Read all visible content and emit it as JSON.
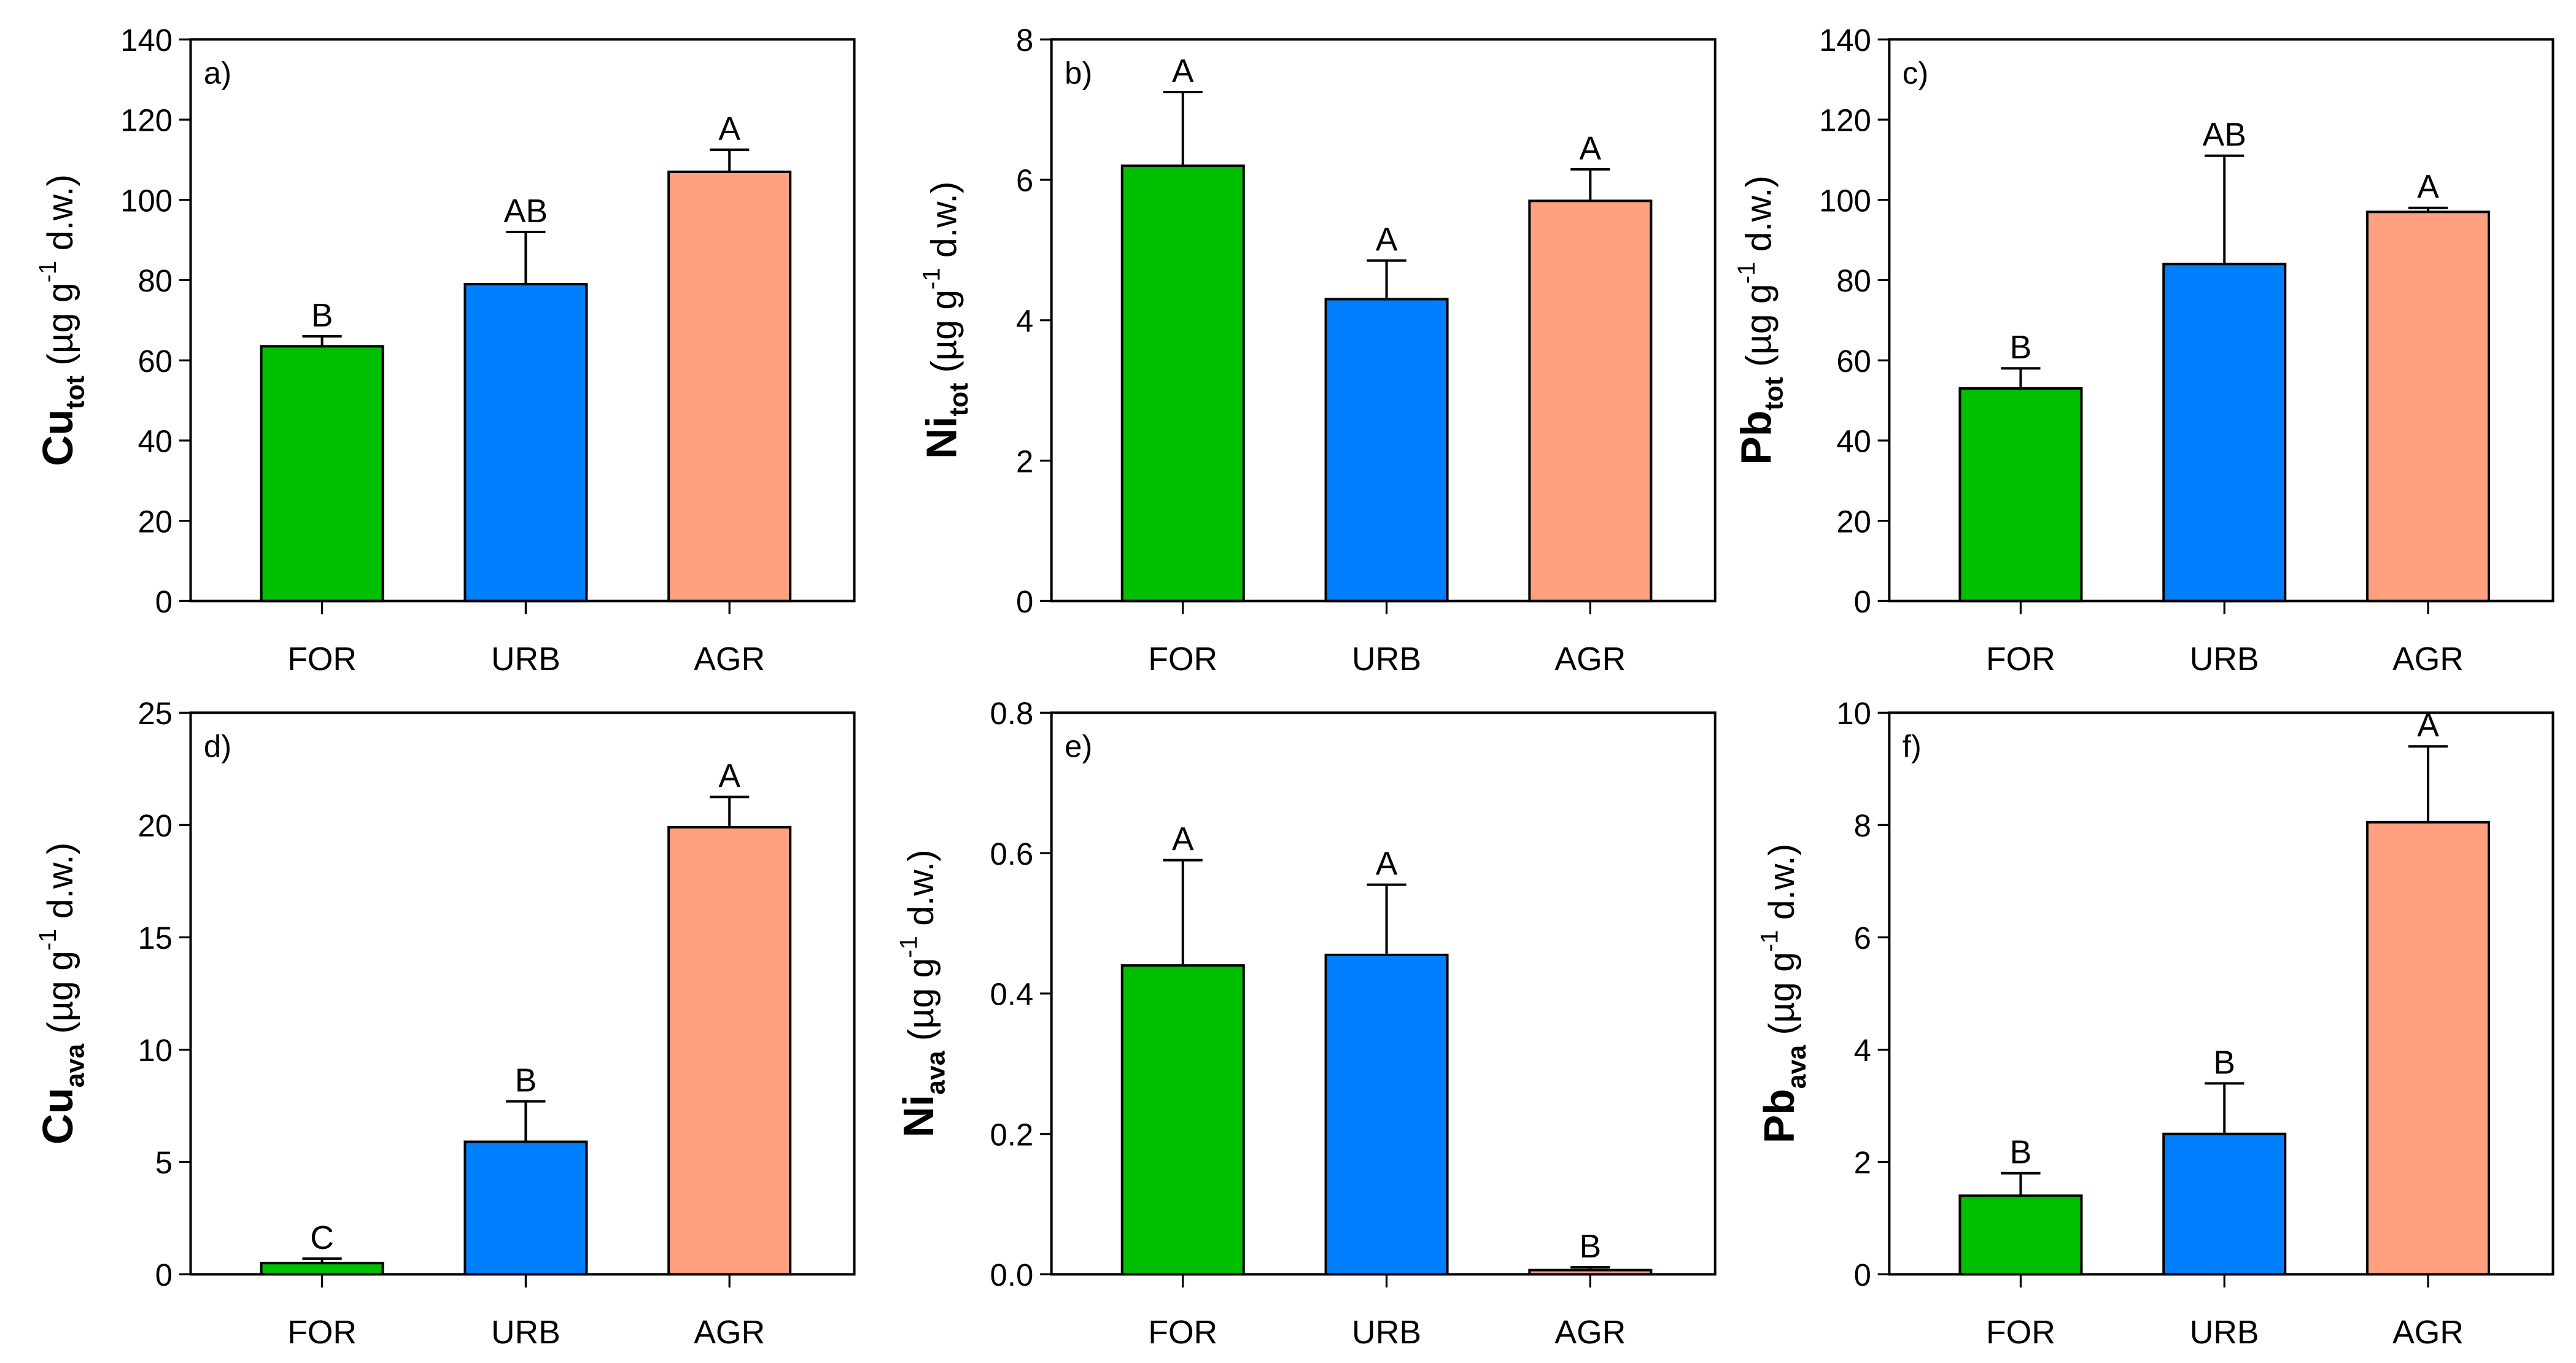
{
  "colors": {
    "FOR": "#00bf00",
    "URB": "#0080ff",
    "AGR": "#ffa07f"
  },
  "chart_data": [
    {
      "type": "bar",
      "panel": "a)",
      "ylabel_main": "Cu",
      "ylabel_sub": "tot",
      "ylabel_unit": " (µg g",
      "ylabel_exp": "-1",
      "ylabel_end": " d.w.)",
      "categories": [
        "FOR",
        "URB",
        "AGR"
      ],
      "values": [
        63.5,
        79,
        107
      ],
      "errors": [
        2.5,
        13,
        5.5
      ],
      "letters": [
        "B",
        "AB",
        "A"
      ],
      "ylim": [
        0,
        140
      ],
      "yticks": [
        0,
        20,
        40,
        60,
        80,
        100,
        120,
        140
      ]
    },
    {
      "type": "bar",
      "panel": "b)",
      "ylabel_main": "Ni",
      "ylabel_sub": "tot",
      "ylabel_unit": " (µg g",
      "ylabel_exp": "-1",
      "ylabel_end": " d.w.)",
      "categories": [
        "FOR",
        "URB",
        "AGR"
      ],
      "values": [
        6.2,
        4.3,
        5.7
      ],
      "errors": [
        1.05,
        0.55,
        0.45
      ],
      "letters": [
        "A",
        "A",
        "A"
      ],
      "ylim": [
        0,
        8
      ],
      "yticks": [
        0,
        2,
        4,
        6,
        8
      ]
    },
    {
      "type": "bar",
      "panel": "c)",
      "ylabel_main": "Pb",
      "ylabel_sub": "tot",
      "ylabel_unit": " (µg g",
      "ylabel_exp": "-1",
      "ylabel_end": " d.w.)",
      "categories": [
        "FOR",
        "URB",
        "AGR"
      ],
      "values": [
        53,
        84,
        97
      ],
      "errors": [
        5,
        27,
        1
      ],
      "letters": [
        "B",
        "AB",
        "A"
      ],
      "ylim": [
        0,
        140
      ],
      "yticks": [
        0,
        20,
        40,
        60,
        80,
        100,
        120,
        140
      ]
    },
    {
      "type": "bar",
      "panel": "d)",
      "ylabel_main": "Cu",
      "ylabel_sub": "ava",
      "ylabel_unit": " (µg g",
      "ylabel_exp": "-1",
      "ylabel_end": " d.w.)",
      "categories": [
        "FOR",
        "URB",
        "AGR"
      ],
      "values": [
        0.5,
        5.9,
        19.9
      ],
      "errors": [
        0.2,
        1.8,
        1.35
      ],
      "letters": [
        "C",
        "B",
        "A"
      ],
      "ylim": [
        0,
        25
      ],
      "yticks": [
        0,
        5,
        10,
        15,
        20,
        25
      ]
    },
    {
      "type": "bar",
      "panel": "e)",
      "ylabel_main": "Ni",
      "ylabel_sub": "ava",
      "ylabel_unit": " (µg g",
      "ylabel_exp": "-1",
      "ylabel_end": " d.w.)",
      "categories": [
        "FOR",
        "URB",
        "AGR"
      ],
      "values": [
        0.44,
        0.455,
        0.006
      ],
      "errors": [
        0.15,
        0.1,
        0.004
      ],
      "letters": [
        "A",
        "A",
        "B"
      ],
      "ylim": [
        0,
        0.8
      ],
      "yticks": [
        "0.0",
        "0.2",
        "0.4",
        "0.6",
        "0.8"
      ]
    },
    {
      "type": "bar",
      "panel": "f)",
      "ylabel_main": "Pb",
      "ylabel_sub": "ava",
      "ylabel_unit": " (µg g",
      "ylabel_exp": "-1",
      "ylabel_end": " d.w.)",
      "categories": [
        "FOR",
        "URB",
        "AGR"
      ],
      "values": [
        1.4,
        2.5,
        8.05
      ],
      "errors": [
        0.4,
        0.9,
        1.35
      ],
      "letters": [
        "B",
        "B",
        "A"
      ],
      "ylim": [
        0,
        10
      ],
      "yticks": [
        0,
        2,
        4,
        6,
        8,
        10
      ]
    }
  ]
}
